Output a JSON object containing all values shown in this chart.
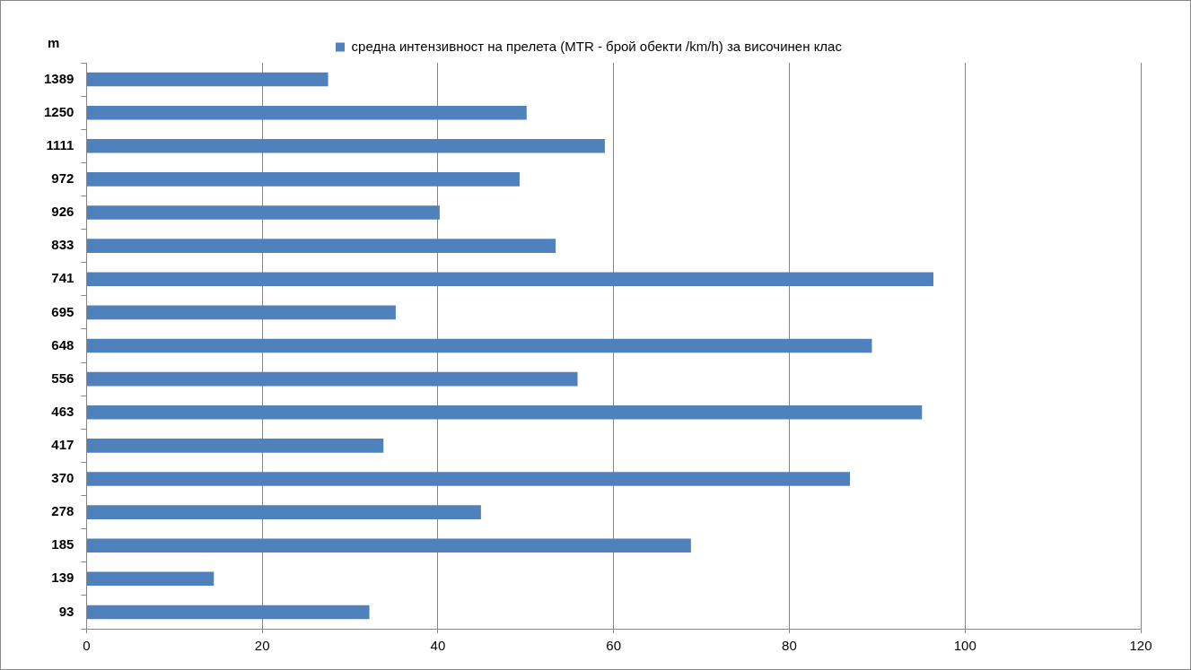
{
  "chart_data": {
    "type": "bar",
    "orientation": "horizontal",
    "ylabel": "m",
    "categories": [
      "1389",
      "1250",
      "1111",
      "972",
      "926",
      "833",
      "741",
      "695",
      "648",
      "556",
      "463",
      "417",
      "370",
      "278",
      "185",
      "139",
      "93"
    ],
    "series": [
      {
        "name": "средна интензивност на прелета (MTR - брой обекти /km/h) за височинен клас",
        "color": "#4f81bd",
        "values": [
          27.5,
          50.1,
          59.0,
          49.3,
          40.2,
          53.4,
          96.4,
          35.2,
          89.4,
          55.9,
          95.1,
          33.8,
          86.9,
          44.9,
          68.8,
          14.5,
          32.2
        ]
      }
    ],
    "xlim": [
      0,
      120
    ],
    "xticks": [
      0,
      20,
      40,
      60,
      80,
      100,
      120
    ],
    "grid": "x",
    "legend": "top"
  }
}
